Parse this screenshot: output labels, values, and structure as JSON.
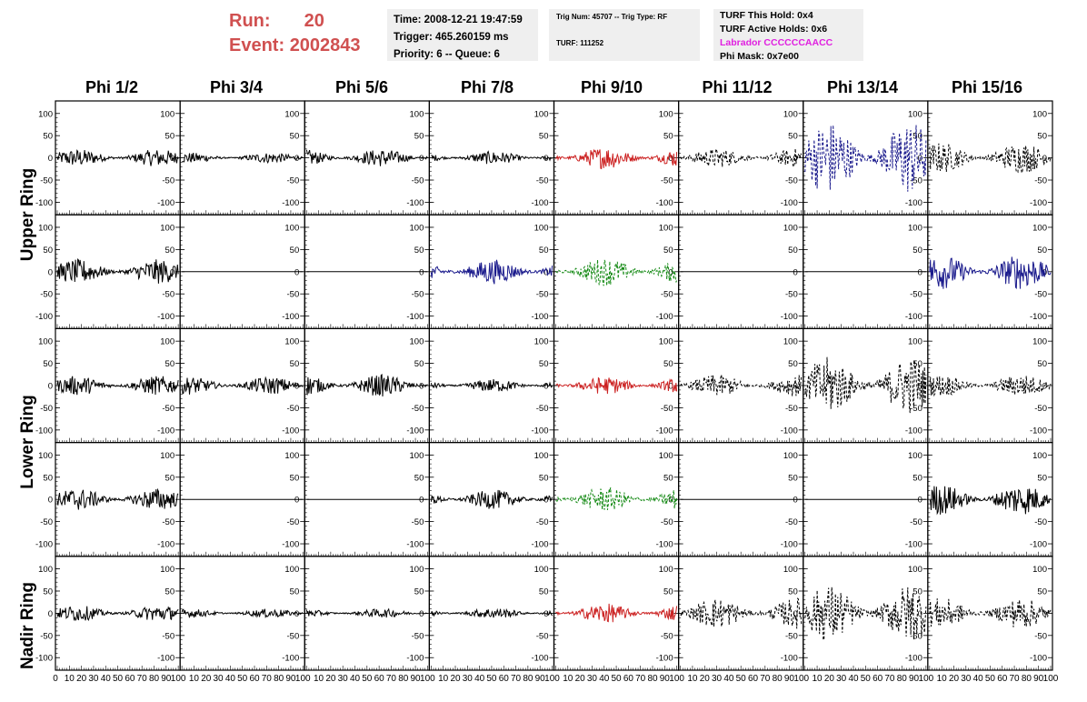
{
  "header": {
    "run_label": "Run:",
    "run_value": "20",
    "event_label": "Event:",
    "event_value": "2002843"
  },
  "info_time": {
    "time": "Time: 2008-12-21 19:47:59",
    "trigger": "Trigger: 465.260159 ms",
    "priority": "Priority: 6 -- Queue: 6"
  },
  "info_trig": {
    "trig": "Trig Num: 45707 -- Trig Type: RF",
    "turf": "TURF: 111252"
  },
  "info_turf": {
    "this_hold": "TURF This Hold: 0x4",
    "active_holds": "TURF Active Holds: 0x6",
    "labrador": "Labrador CCCCCCAACC",
    "phi_mask": "Phi Mask: 0x7e00"
  },
  "columns": [
    "Phi 1/2",
    "Phi 3/4",
    "Phi 5/6",
    "Phi 7/8",
    "Phi 9/10",
    "Phi 11/12",
    "Phi 13/14",
    "Phi 15/16"
  ],
  "row_labels": {
    "upper": "Upper Ring",
    "lower": "Lower Ring",
    "nadir": "Nadir Ring"
  },
  "y_ticks": [
    "100",
    "50",
    "0",
    "-50",
    "-100"
  ],
  "x_ticks": [
    "10",
    "20",
    "30",
    "40",
    "50",
    "60",
    "70",
    "80",
    "90",
    "100"
  ],
  "x_first_tick": "0",
  "colors": {
    "run_text": "#d05050",
    "info_bg": "#efefef",
    "labrador": "#e020e0",
    "trace_black": "#000000",
    "trace_red": "#cc2222",
    "trace_blue": "#1a1a8c",
    "trace_green": "#118811"
  },
  "chart_data": {
    "type": "line",
    "xlim": [
      0,
      100
    ],
    "ylim": [
      -120,
      120
    ],
    "panels": [
      {
        "row": 0,
        "col": 0,
        "color": "black",
        "style": "solid",
        "amp": 20
      },
      {
        "row": 0,
        "col": 1,
        "color": "black",
        "style": "solid",
        "amp": 12
      },
      {
        "row": 0,
        "col": 2,
        "color": "black",
        "style": "solid",
        "amp": 20
      },
      {
        "row": 0,
        "col": 3,
        "color": "black",
        "style": "solid",
        "amp": 15
      },
      {
        "row": 0,
        "col": 4,
        "color": "red",
        "style": "solid",
        "amp": 25
      },
      {
        "row": 0,
        "col": 5,
        "color": "black",
        "style": "dashed",
        "amp": 22
      },
      {
        "row": 0,
        "col": 6,
        "color": "blue",
        "style": "dashed",
        "amp": 85
      },
      {
        "row": 0,
        "col": 7,
        "color": "black",
        "style": "dashed",
        "amp": 35
      },
      {
        "row": 1,
        "col": 0,
        "color": "black",
        "style": "solid",
        "amp": 28
      },
      {
        "row": 1,
        "col": 1,
        "color": "black",
        "style": "solid",
        "amp": 0
      },
      {
        "row": 1,
        "col": 2,
        "color": "black",
        "style": "solid",
        "amp": 0
      },
      {
        "row": 1,
        "col": 3,
        "color": "blue",
        "style": "solid",
        "amp": 28
      },
      {
        "row": 1,
        "col": 4,
        "color": "green",
        "style": "dashed",
        "amp": 32
      },
      {
        "row": 1,
        "col": 5,
        "color": "black",
        "style": "solid",
        "amp": 0
      },
      {
        "row": 1,
        "col": 6,
        "color": "black",
        "style": "solid",
        "amp": 0
      },
      {
        "row": 1,
        "col": 7,
        "color": "blue",
        "style": "solid",
        "amp": 40
      },
      {
        "row": 2,
        "col": 0,
        "color": "black",
        "style": "solid",
        "amp": 22
      },
      {
        "row": 2,
        "col": 1,
        "color": "black",
        "style": "solid",
        "amp": 20
      },
      {
        "row": 2,
        "col": 2,
        "color": "black",
        "style": "solid",
        "amp": 25
      },
      {
        "row": 2,
        "col": 3,
        "color": "black",
        "style": "solid",
        "amp": 15
      },
      {
        "row": 2,
        "col": 4,
        "color": "red",
        "style": "solid",
        "amp": 20
      },
      {
        "row": 2,
        "col": 5,
        "color": "black",
        "style": "dashed",
        "amp": 25
      },
      {
        "row": 2,
        "col": 6,
        "color": "black",
        "style": "dashed",
        "amp": 65
      },
      {
        "row": 2,
        "col": 7,
        "color": "black",
        "style": "dashed",
        "amp": 25
      },
      {
        "row": 3,
        "col": 0,
        "color": "black",
        "style": "solid",
        "amp": 25
      },
      {
        "row": 3,
        "col": 1,
        "color": "black",
        "style": "solid",
        "amp": 0
      },
      {
        "row": 3,
        "col": 2,
        "color": "black",
        "style": "solid",
        "amp": 0
      },
      {
        "row": 3,
        "col": 3,
        "color": "black",
        "style": "solid",
        "amp": 22
      },
      {
        "row": 3,
        "col": 4,
        "color": "green",
        "style": "dashed",
        "amp": 28
      },
      {
        "row": 3,
        "col": 5,
        "color": "black",
        "style": "solid",
        "amp": 0
      },
      {
        "row": 3,
        "col": 6,
        "color": "black",
        "style": "solid",
        "amp": 0
      },
      {
        "row": 3,
        "col": 7,
        "color": "black",
        "style": "solid",
        "amp": 35
      },
      {
        "row": 4,
        "col": 0,
        "color": "black",
        "style": "solid",
        "amp": 18
      },
      {
        "row": 4,
        "col": 1,
        "color": "black",
        "style": "solid",
        "amp": 10
      },
      {
        "row": 4,
        "col": 2,
        "color": "black",
        "style": "solid",
        "amp": 10
      },
      {
        "row": 4,
        "col": 3,
        "color": "black",
        "style": "solid",
        "amp": 12
      },
      {
        "row": 4,
        "col": 4,
        "color": "red",
        "style": "solid",
        "amp": 22
      },
      {
        "row": 4,
        "col": 5,
        "color": "black",
        "style": "dashed",
        "amp": 35
      },
      {
        "row": 4,
        "col": 6,
        "color": "black",
        "style": "dashed",
        "amp": 65
      },
      {
        "row": 4,
        "col": 7,
        "color": "black",
        "style": "dashed",
        "amp": 35
      }
    ]
  }
}
